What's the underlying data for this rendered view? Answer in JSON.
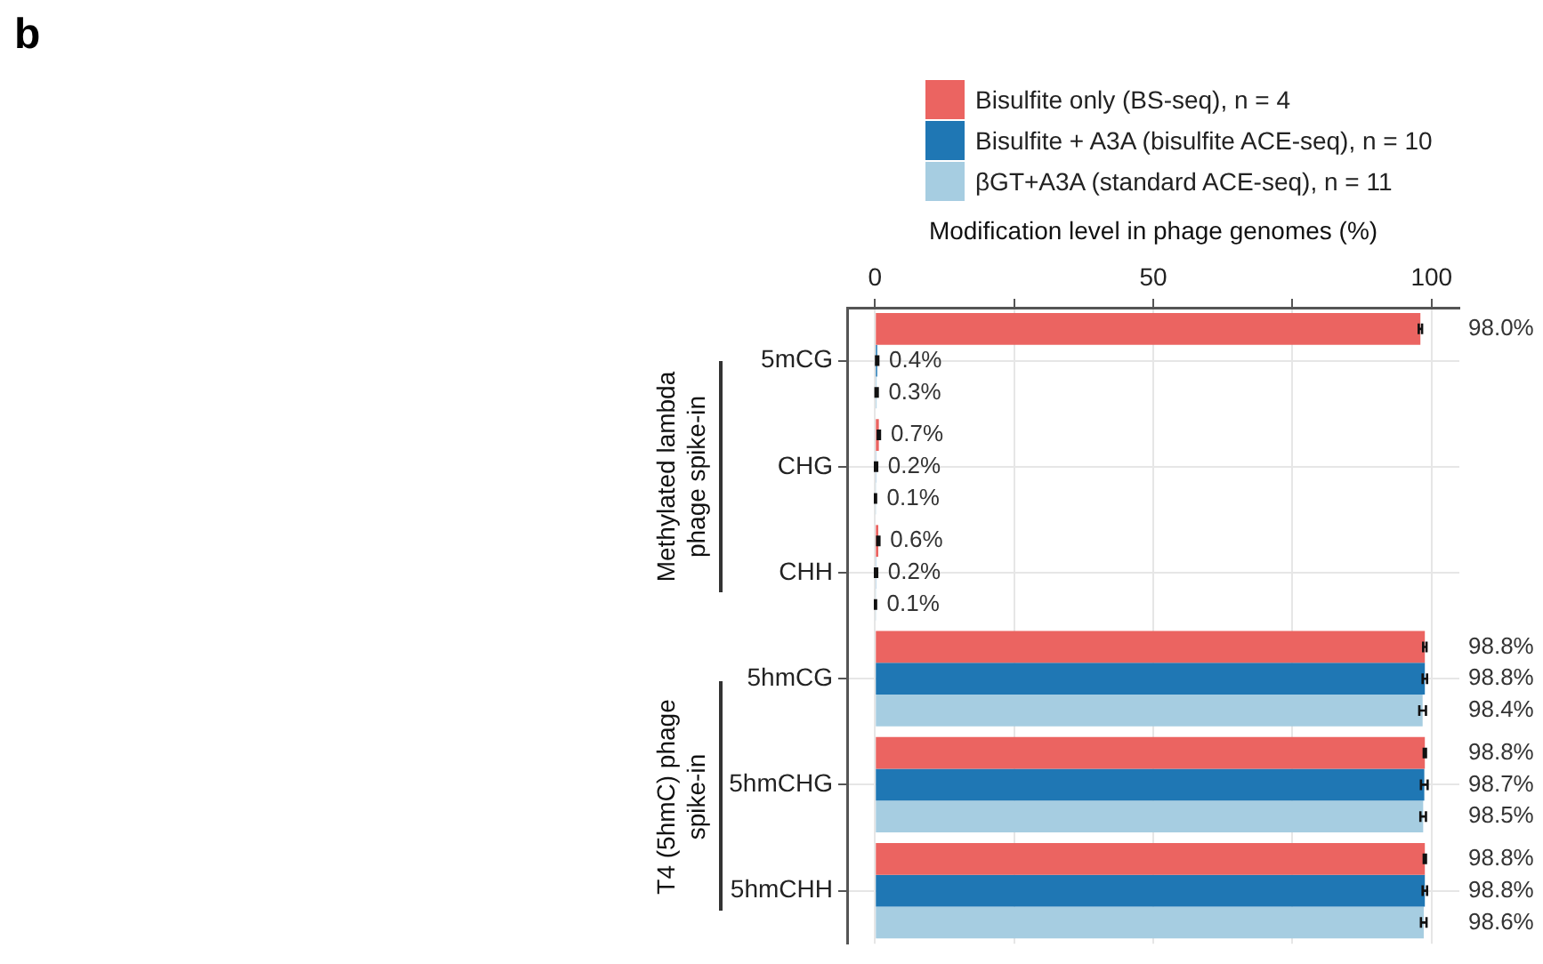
{
  "chart_data": {
    "type": "bar",
    "orientation": "horizontal",
    "title": "b",
    "xlabel": "Modification level in phage genomes (%)",
    "categories": [
      "5mCG",
      "CHG",
      "CHH",
      "5hmCG",
      "5hmCHG",
      "5hmCHH"
    ],
    "series": [
      {
        "name": "Bisulfite only (BS-seq), n = 4",
        "color": "#eb6461",
        "values": [
          98.0,
          0.7,
          0.6,
          98.8,
          98.8,
          98.8
        ],
        "errors": [
          0.3,
          0.2,
          0.2,
          0.3,
          0.2,
          0.2
        ],
        "value_labels": [
          "98.0%",
          "0.7%",
          "0.6%",
          "98.8%",
          "98.8%",
          "98.8%"
        ]
      },
      {
        "name": "Bisulfite + A3A (bisulfite ACE-seq), n = 10",
        "color": "#1f77b4",
        "values": [
          0.4,
          0.2,
          0.2,
          98.8,
          98.7,
          98.8
        ],
        "errors": [
          0.2,
          0.2,
          0.2,
          0.4,
          0.6,
          0.4
        ],
        "value_labels": [
          "0.4%",
          "0.2%",
          "0.2%",
          "98.8%",
          "98.7%",
          "98.8%"
        ]
      },
      {
        "name": "βGT+A3A (standard ACE-seq), n = 11",
        "color": "#a6cde1",
        "values": [
          0.3,
          0.1,
          0.1,
          98.4,
          98.5,
          98.6
        ],
        "errors": [
          0.2,
          0.1,
          0.1,
          0.6,
          0.5,
          0.5
        ],
        "value_labels": [
          "0.3%",
          "0.1%",
          "0.1%",
          "98.4%",
          "98.5%",
          "98.6%"
        ]
      }
    ],
    "xlim": [
      -5,
      105
    ],
    "xticks": [
      0,
      {
        "value": 25,
        "label": null
      },
      50,
      {
        "value": 75,
        "label": null
      },
      100
    ],
    "grid": true,
    "legend": "top",
    "annotations": [
      "Methylated lambda phage spike-in",
      "T4 (5hmC) phage spike-in"
    ]
  }
}
